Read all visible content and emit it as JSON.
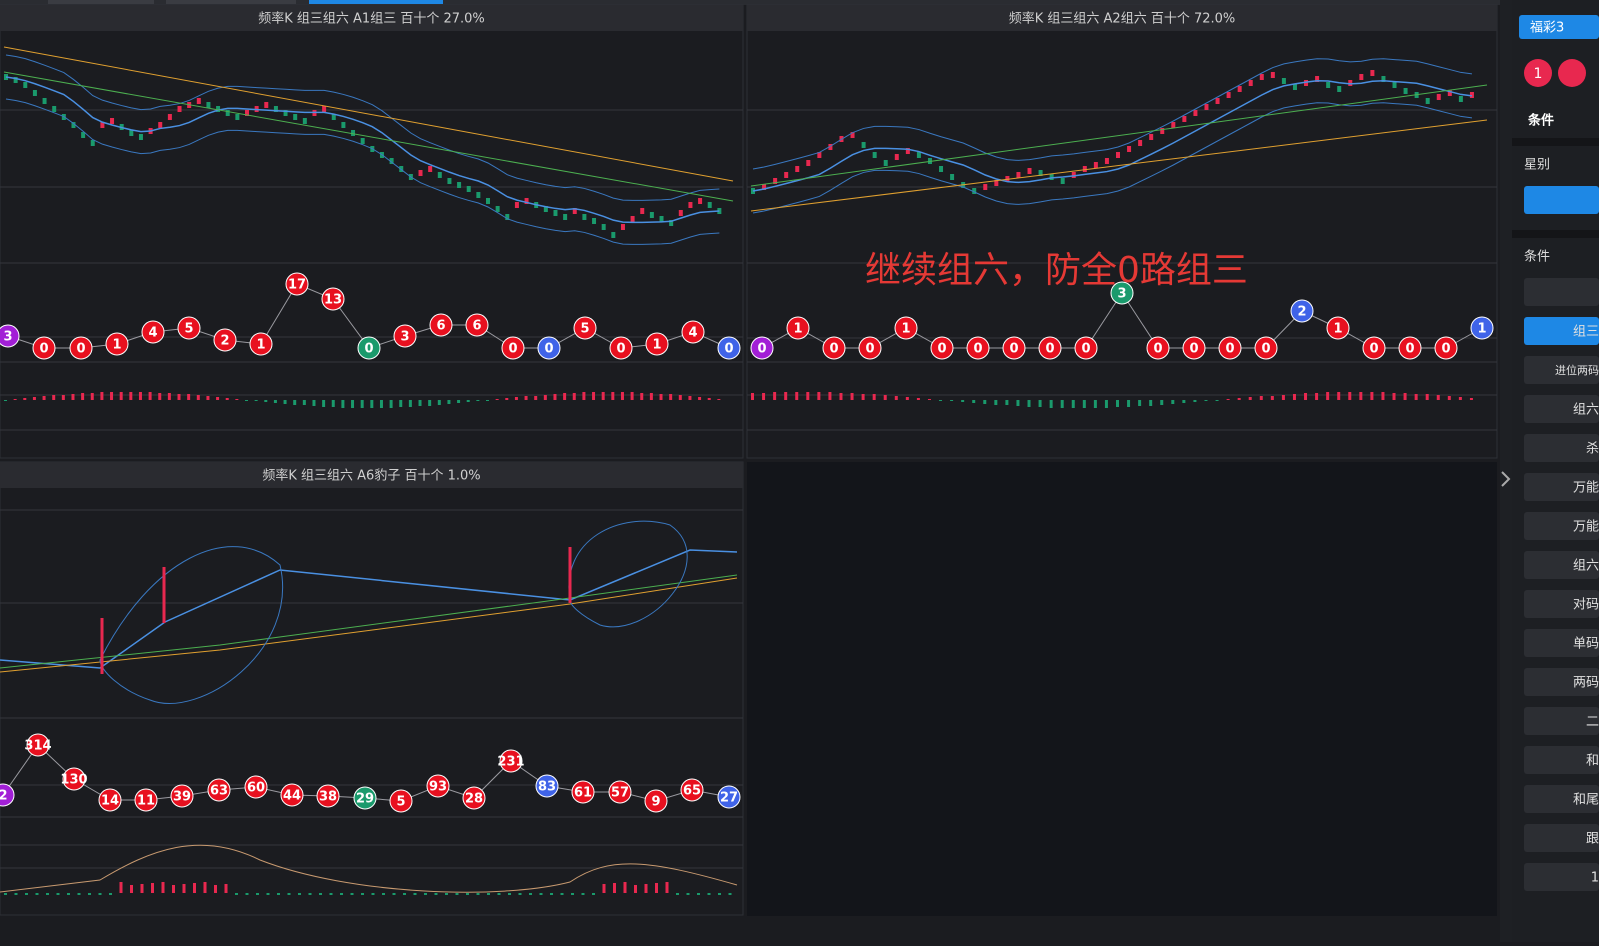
{
  "panels": [
    {
      "title": "频率K  组三组六  A1组三  百十个  27.0%",
      "balls": [
        "3",
        "0",
        "0",
        "1",
        "4",
        "5",
        "2",
        "1",
        "17",
        "13",
        "0",
        "3",
        "6",
        "6",
        "0",
        "0",
        "5",
        "0",
        "1",
        "4",
        "0"
      ]
    },
    {
      "title": "频率K  组三组六  A2组六  百十个  72.0%",
      "balls": [
        "0",
        "1",
        "0",
        "0",
        "1",
        "0",
        "0",
        "0",
        "0",
        "0",
        "3",
        "0",
        "0",
        "0",
        "0",
        "2",
        "1",
        "0",
        "0",
        "0",
        "1"
      ]
    },
    {
      "title": "频率K  组三组六  A6豹子  百十个  1.0%",
      "balls": [
        "2",
        "314",
        "130",
        "14",
        "11",
        "39",
        "63",
        "60",
        "44",
        "38",
        "29",
        "5",
        "93",
        "28",
        "231",
        "83",
        "61",
        "57",
        "9",
        "65",
        "27"
      ]
    }
  ],
  "annotation": "继续组六，防全0路组三",
  "sidebar": {
    "tag": "福彩3",
    "ball": "1",
    "heading": "条件",
    "star_label": "星别",
    "condition_label": "条件",
    "buttons": [
      "组三",
      "进位两码",
      "组六",
      "杀",
      "万能",
      "万能",
      "组六",
      "对码",
      "单码",
      "两码",
      "二",
      "和",
      "和尾",
      "跟",
      "1"
    ]
  }
}
